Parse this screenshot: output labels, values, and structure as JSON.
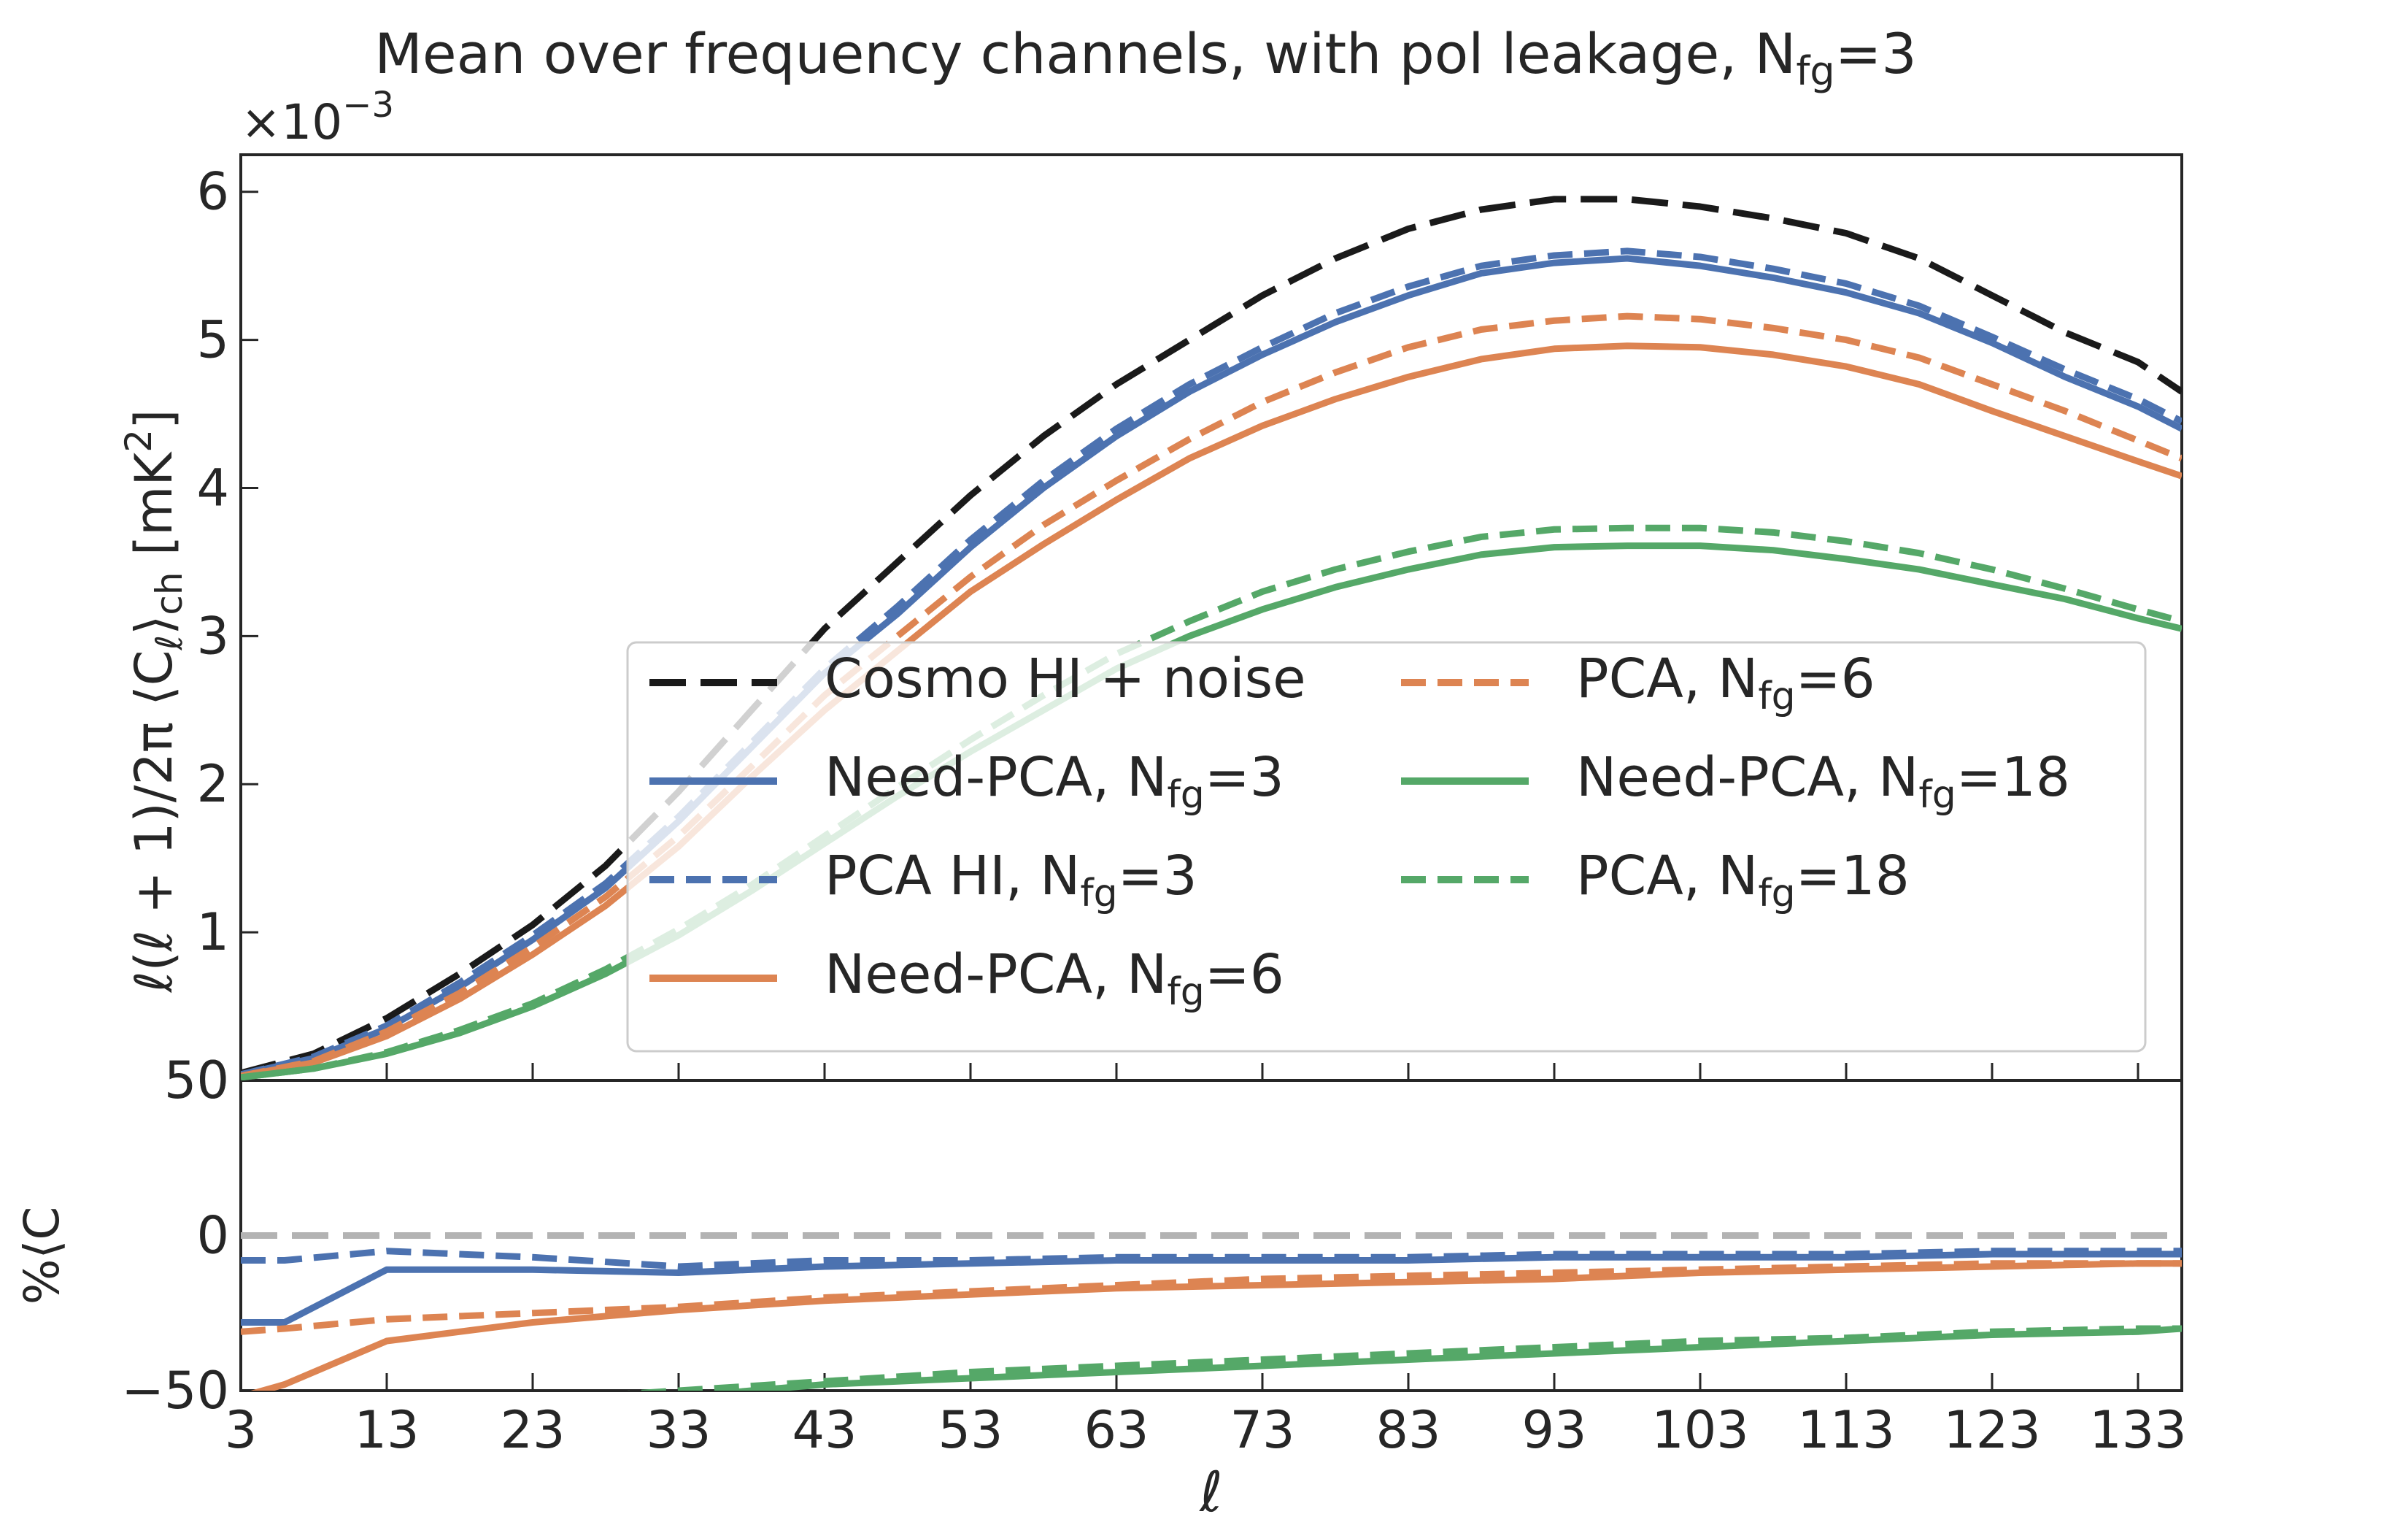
{
  "chart_data": {
    "type": "line",
    "title": "Mean over frequency channels, with pol leakage, N",
    "title_sub": "fg",
    "title_suffix": "=3",
    "exponent_label": "×10",
    "exponent_power": "−3",
    "xlabel": "ℓ",
    "top_panel": {
      "ylabel": "ℓ(ℓ + 1)/2π ⟨C",
      "ylabel_sub": "ℓ",
      "ylabel_mid": "⟩",
      "ylabel_sub2": "ch",
      "ylabel_unit": " [mK",
      "ylabel_unit_sup": "2",
      "ylabel_unit_end": "]",
      "ylim": [
        0,
        6.25
      ],
      "yticks": [
        0,
        1,
        2,
        3,
        4,
        5,
        6
      ],
      "ytick_labels": [
        "0",
        "1",
        "2",
        "3",
        "4",
        "5",
        "6"
      ],
      "x": [
        3,
        8,
        13,
        18,
        23,
        28,
        33,
        38,
        43,
        48,
        53,
        58,
        63,
        68,
        73,
        78,
        83,
        88,
        93,
        98,
        103,
        108,
        113,
        118,
        123,
        128,
        133,
        136
      ],
      "series": [
        {
          "name": "Cosmo HI + noise",
          "color": "#1a1a1a",
          "dash": "long",
          "values": [
            0.05,
            0.18,
            0.42,
            0.72,
            1.05,
            1.45,
            1.95,
            2.5,
            3.05,
            3.5,
            3.95,
            4.35,
            4.7,
            5.0,
            5.3,
            5.55,
            5.75,
            5.88,
            5.95,
            5.95,
            5.9,
            5.82,
            5.72,
            5.55,
            5.3,
            5.05,
            4.85,
            4.65
          ]
        },
        {
          "name": "Need-PCA, N",
          "sub": "fg",
          "suffix": "=3",
          "color": "#4c72b0",
          "dash": "solid",
          "values": [
            0.04,
            0.15,
            0.35,
            0.63,
            0.95,
            1.3,
            1.75,
            2.25,
            2.75,
            3.15,
            3.6,
            4.0,
            4.35,
            4.65,
            4.9,
            5.12,
            5.3,
            5.45,
            5.52,
            5.55,
            5.5,
            5.42,
            5.32,
            5.18,
            4.98,
            4.75,
            4.55,
            4.4
          ]
        },
        {
          "name": "PCA HI, N",
          "sub": "fg",
          "suffix": "=3",
          "color": "#4c72b0",
          "dash": "dashed",
          "values": [
            0.04,
            0.16,
            0.37,
            0.66,
            0.98,
            1.33,
            1.78,
            2.28,
            2.78,
            3.2,
            3.65,
            4.05,
            4.4,
            4.7,
            4.95,
            5.18,
            5.36,
            5.5,
            5.57,
            5.6,
            5.56,
            5.48,
            5.38,
            5.23,
            5.02,
            4.8,
            4.6,
            4.45
          ]
        },
        {
          "name": "Need-PCA, N",
          "sub": "fg",
          "suffix": "=6",
          "color": "#dd8452",
          "dash": "solid",
          "values": [
            0.03,
            0.12,
            0.3,
            0.55,
            0.85,
            1.18,
            1.58,
            2.05,
            2.5,
            2.9,
            3.3,
            3.62,
            3.92,
            4.2,
            4.42,
            4.6,
            4.75,
            4.87,
            4.94,
            4.96,
            4.95,
            4.9,
            4.82,
            4.7,
            4.52,
            4.35,
            4.18,
            4.08
          ]
        },
        {
          "name": "PCA, N",
          "sub": "fg",
          "suffix": "=6",
          "color": "#dd8452",
          "dash": "dashed",
          "values": [
            0.03,
            0.13,
            0.33,
            0.59,
            0.9,
            1.24,
            1.65,
            2.12,
            2.6,
            3.0,
            3.4,
            3.75,
            4.05,
            4.33,
            4.58,
            4.78,
            4.95,
            5.07,
            5.13,
            5.16,
            5.14,
            5.08,
            5.0,
            4.88,
            4.7,
            4.52,
            4.32,
            4.2
          ]
        },
        {
          "name": "Need-PCA, N",
          "sub": "fg",
          "suffix": "=18",
          "color": "#55a868",
          "dash": "solid",
          "values": [
            0.02,
            0.08,
            0.18,
            0.32,
            0.5,
            0.72,
            0.98,
            1.28,
            1.6,
            1.92,
            2.22,
            2.5,
            2.78,
            3.0,
            3.18,
            3.33,
            3.45,
            3.55,
            3.6,
            3.61,
            3.61,
            3.58,
            3.52,
            3.45,
            3.35,
            3.25,
            3.12,
            3.05
          ]
        },
        {
          "name": "PCA, N",
          "sub": "fg",
          "suffix": "=18",
          "color": "#55a868",
          "dash": "dashed",
          "values": [
            0.02,
            0.08,
            0.19,
            0.34,
            0.52,
            0.75,
            1.02,
            1.32,
            1.65,
            1.98,
            2.3,
            2.6,
            2.88,
            3.1,
            3.3,
            3.45,
            3.57,
            3.67,
            3.72,
            3.73,
            3.73,
            3.7,
            3.64,
            3.56,
            3.45,
            3.32,
            3.18,
            3.1
          ]
        }
      ]
    },
    "bottom_panel": {
      "ylabel": "%⟨C",
      "ylim": [
        -50,
        50
      ],
      "yticks": [
        -50,
        0,
        50
      ],
      "ytick_labels": [
        "−50",
        "0",
        "50"
      ],
      "x": [
        3,
        6,
        13,
        23,
        33,
        43,
        53,
        63,
        73,
        83,
        93,
        103,
        113,
        123,
        133,
        136
      ],
      "series": [
        {
          "color": "#b3b3b3",
          "dash": "long",
          "values": [
            0,
            0,
            0,
            0,
            0,
            0,
            0,
            0,
            0,
            0,
            0,
            0,
            0,
            0,
            0,
            0
          ]
        },
        {
          "color": "#4c72b0",
          "dash": "solid",
          "values": [
            -28,
            -28,
            -11,
            -11,
            -12,
            -10,
            -9,
            -8,
            -8,
            -8,
            -7,
            -7,
            -7,
            -6,
            -6,
            -6
          ]
        },
        {
          "color": "#4c72b0",
          "dash": "dashed",
          "values": [
            -8,
            -8,
            -5,
            -7,
            -10,
            -8,
            -8,
            -7,
            -7,
            -7,
            -6,
            -6,
            -6,
            -5,
            -5,
            -5
          ]
        },
        {
          "color": "#dd8452",
          "dash": "solid",
          "values": [
            -52,
            -48,
            -34,
            -28,
            -24,
            -21,
            -19,
            -17,
            -16,
            -15,
            -14,
            -12,
            -11,
            -10,
            -9,
            -9
          ]
        },
        {
          "color": "#dd8452",
          "dash": "dashed",
          "values": [
            -31,
            -30,
            -27,
            -25,
            -23,
            -20,
            -18,
            -16,
            -14,
            -13,
            -12,
            -11,
            -10,
            -9,
            -9,
            -9
          ]
        },
        {
          "color": "#55a868",
          "dash": "solid",
          "values": [
            -60,
            -60,
            -58,
            -55,
            -52,
            -48,
            -46,
            -44,
            -42,
            -40,
            -38,
            -36,
            -34,
            -32,
            -31,
            -30
          ]
        },
        {
          "color": "#55a868",
          "dash": "dashed",
          "values": [
            -58,
            -58,
            -56,
            -53,
            -50,
            -47,
            -44,
            -42,
            -40,
            -38,
            -36,
            -34,
            -33,
            -31,
            -30,
            -30
          ]
        }
      ]
    },
    "xlim": [
      3,
      136
    ],
    "xticks": [
      3,
      13,
      23,
      33,
      43,
      53,
      63,
      73,
      83,
      93,
      103,
      113,
      123,
      133
    ],
    "xtick_labels": [
      "3",
      "13",
      "23",
      "33",
      "43",
      "53",
      "63",
      "73",
      "83",
      "93",
      "103",
      "113",
      "123",
      "133"
    ],
    "legend_placement": "lower-right"
  }
}
